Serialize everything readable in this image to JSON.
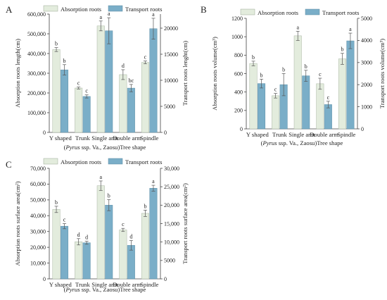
{
  "legend": {
    "absorption": "Absorption roots",
    "transport": "Transport roots"
  },
  "colors": {
    "absorption": "#e3ecdd",
    "transport": "#7aaec8",
    "axis": "#444444"
  },
  "categories": [
    "Y shaped",
    "Trunk",
    "Single arm",
    "Double arm",
    "Spindle"
  ],
  "chart_data": [
    {
      "panel_letter": "A",
      "type": "bar",
      "categories": [
        "Y shaped",
        "Trunk",
        "Single arm",
        "Double arm",
        "Spindle"
      ],
      "legend_placement": "top",
      "grid": false,
      "xlabel_pre": "(",
      "xlabel_italic": "Pyrus",
      "xlabel_post": " ssp. Va., Zaosu)Tree shape",
      "left_axis": {
        "label": "Absorption roots length(cm)",
        "ylim": [
          0,
          600000
        ],
        "ticks": [
          0,
          100000,
          200000,
          300000,
          400000,
          500000,
          600000
        ],
        "tick_labels": [
          "0",
          "100,000",
          "200,000",
          "300,000",
          "400,000",
          "500,000",
          "600,000"
        ]
      },
      "right_axis": {
        "label": "Transport roots lenght(cm)",
        "ylim": [
          0,
          22700
        ],
        "ticks": [
          0,
          5000,
          10000,
          15000,
          20000
        ],
        "tick_labels": [
          "0",
          "5000",
          "10000",
          "15000",
          "20000"
        ]
      },
      "series": [
        {
          "name": "Absorption roots",
          "axis": "left",
          "values": [
            420000,
            225000,
            540000,
            293000,
            355000
          ],
          "errors": [
            10000,
            5000,
            25000,
            25000,
            7000
          ],
          "labels": [
            "b",
            "c",
            "a",
            "d",
            "c"
          ]
        },
        {
          "name": "Transport roots",
          "axis": "right",
          "values": [
            12000,
            6900,
            19500,
            8500,
            19900
          ],
          "errors": [
            1000,
            300,
            2500,
            700,
            2000
          ],
          "labels": [
            "b",
            "c",
            "a",
            "bc",
            "a"
          ]
        }
      ]
    },
    {
      "panel_letter": "B",
      "type": "bar",
      "categories": [
        "Y shaped",
        "Trunk",
        "Single arm",
        "Double arm",
        "Spindle"
      ],
      "legend_placement": "top",
      "grid": false,
      "xlabel_pre": "(",
      "xlabel_italic": "Pyrus",
      "xlabel_post": " ssp. Va., Zaosu)Tree shape",
      "left_axis": {
        "label": "Absorption roots volume(cm³)",
        "ylim": [
          0,
          1200
        ],
        "ticks": [
          0,
          200,
          400,
          600,
          800,
          1000,
          1200
        ],
        "tick_labels": [
          "0",
          "200",
          "400",
          "600",
          "800",
          "1000",
          "1200"
        ]
      },
      "right_axis": {
        "label": "Transport roots volume(cm³)",
        "ylim": [
          0,
          5000
        ],
        "ticks": [
          0,
          1000,
          2000,
          3000,
          4000,
          5000
        ],
        "tick_labels": [
          "0",
          "1000",
          "2000",
          "3000",
          "4000",
          "5000"
        ]
      },
      "series": [
        {
          "name": "Absorption roots",
          "axis": "left",
          "values": [
            710,
            360,
            1010,
            490,
            760
          ],
          "errors": [
            25,
            25,
            50,
            60,
            60
          ],
          "labels": [
            "b",
            "c",
            "a",
            "c",
            "b"
          ]
        },
        {
          "name": "Transport roots",
          "axis": "right",
          "values": [
            2050,
            2000,
            2400,
            1100,
            3980
          ],
          "errors": [
            200,
            500,
            250,
            150,
            350
          ],
          "labels": [
            "b",
            "b",
            "b",
            "c",
            "a"
          ]
        }
      ]
    },
    {
      "panel_letter": "C",
      "type": "bar",
      "categories": [
        "Y shaped",
        "Trunk",
        "Single arm",
        "Double arm",
        "Spindle"
      ],
      "legend_placement": "top",
      "grid": false,
      "xlabel_pre": "(",
      "xlabel_italic": "Pyrus",
      "xlabel_post": " ssp. Va., Zaosu)Tree shape",
      "left_axis": {
        "label": "Absorption roots surface area(cm²)",
        "ylim": [
          0,
          70000
        ],
        "ticks": [
          0,
          10000,
          20000,
          30000,
          40000,
          50000,
          60000,
          70000
        ],
        "tick_labels": [
          "0",
          "10,000",
          "20,000",
          "30,000",
          "40,000",
          "50,000",
          "60,000",
          "70,000"
        ]
      },
      "right_axis": {
        "label": "Transport roots surface area(cm²)",
        "ylim": [
          0,
          30000
        ],
        "ticks": [
          0,
          5000,
          10000,
          15000,
          20000,
          25000,
          30000
        ],
        "tick_labels": [
          "0",
          "5000",
          "10,000",
          "15,000",
          "20,000",
          "25,000",
          "30,000"
        ]
      },
      "series": [
        {
          "name": "Absorption roots",
          "axis": "left",
          "values": [
            44000,
            23500,
            59000,
            31000,
            41500
          ],
          "errors": [
            2000,
            2000,
            3000,
            1000,
            2000
          ],
          "labels": [
            "b",
            "d",
            "a",
            "c",
            "b"
          ]
        },
        {
          "name": "Transport roots",
          "axis": "right",
          "values": [
            14300,
            9800,
            20000,
            9100,
            24600
          ],
          "errors": [
            700,
            400,
            1500,
            1300,
            800
          ],
          "labels": [
            "c",
            "d",
            "b",
            "d",
            "a"
          ]
        }
      ]
    }
  ]
}
